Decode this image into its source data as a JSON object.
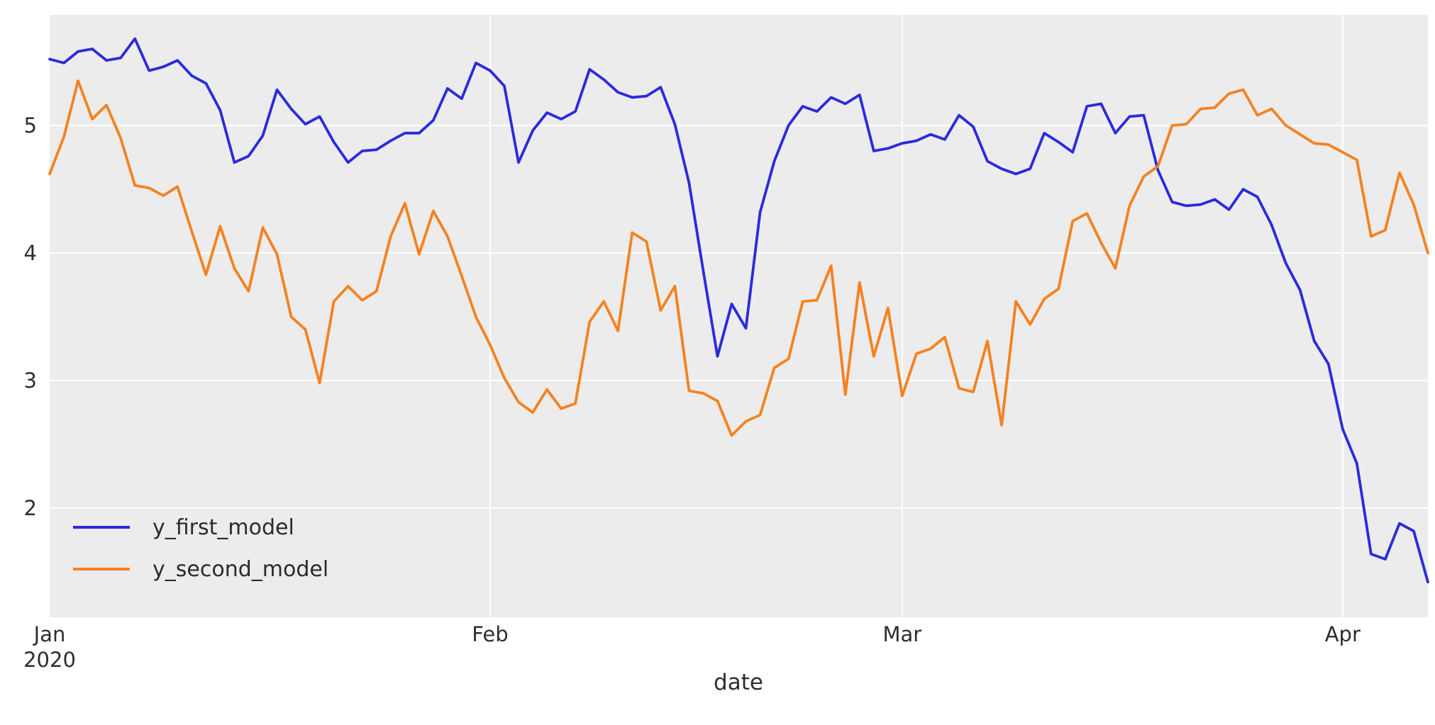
{
  "chart_data": {
    "type": "line",
    "title": "",
    "xlabel": "date",
    "ylabel": "",
    "start_date": "2020-01-01",
    "num_points": 98,
    "x_axis": {
      "tick_days": [
        0,
        31,
        60,
        91
      ],
      "tick_labels": [
        "Jan",
        "Feb",
        "Mar",
        "Apr"
      ],
      "tick_sublabels": [
        "2020",
        "",
        "",
        ""
      ]
    },
    "y_axis": {
      "ticks": [
        2,
        3,
        4,
        5
      ],
      "ylim": [
        1.144,
        5.867
      ]
    },
    "grid": true,
    "legend_position": "lower left",
    "series": [
      {
        "name": "y_first_model",
        "color": "#2b2bdc",
        "values": [
          5.52,
          5.49,
          5.58,
          5.6,
          5.51,
          5.53,
          5.68,
          5.43,
          5.46,
          5.51,
          5.39,
          5.33,
          5.12,
          4.71,
          4.76,
          4.92,
          5.28,
          5.13,
          5.01,
          5.07,
          4.87,
          4.71,
          4.8,
          4.81,
          4.88,
          4.94,
          4.94,
          5.04,
          5.29,
          5.21,
          5.49,
          5.43,
          5.31,
          4.71,
          4.96,
          5.1,
          5.05,
          5.11,
          5.44,
          5.36,
          5.26,
          5.22,
          5.23,
          5.3,
          5.01,
          4.55,
          3.86,
          3.19,
          3.6,
          3.41,
          4.32,
          4.72,
          5.0,
          5.15,
          5.11,
          5.22,
          5.17,
          5.24,
          4.8,
          4.82,
          4.86,
          4.88,
          4.93,
          4.89,
          5.08,
          4.99,
          4.72,
          4.66,
          4.62,
          4.66,
          4.94,
          4.87,
          4.79,
          5.15,
          5.17,
          4.94,
          5.07,
          5.08,
          4.65,
          4.4,
          4.37,
          4.38,
          4.42,
          4.34,
          4.5,
          4.44,
          4.22,
          3.92,
          3.71,
          3.31,
          3.13,
          2.62,
          2.35,
          1.64,
          1.6,
          1.88,
          1.82,
          1.42
        ]
      },
      {
        "name": "y_second_model",
        "color": "#f5821f",
        "values": [
          4.62,
          4.91,
          5.35,
          5.05,
          5.16,
          4.9,
          4.53,
          4.51,
          4.45,
          4.52,
          4.17,
          3.83,
          4.21,
          3.88,
          3.7,
          4.2,
          3.99,
          3.5,
          3.4,
          2.98,
          3.62,
          3.74,
          3.63,
          3.7,
          4.13,
          4.39,
          3.99,
          4.33,
          4.13,
          3.82,
          3.5,
          3.28,
          3.02,
          2.83,
          2.75,
          2.93,
          2.78,
          2.82,
          3.46,
          3.62,
          3.39,
          4.16,
          4.09,
          3.55,
          3.74,
          2.92,
          2.9,
          2.84,
          2.57,
          2.68,
          2.73,
          3.1,
          3.17,
          3.62,
          3.63,
          3.9,
          2.89,
          3.77,
          3.19,
          3.57,
          2.88,
          3.21,
          3.25,
          3.34,
          2.94,
          2.91,
          3.31,
          2.65,
          3.62,
          3.44,
          3.64,
          3.72,
          4.25,
          4.31,
          4.08,
          3.88,
          4.37,
          4.6,
          4.68,
          5.0,
          5.01,
          5.13,
          5.14,
          5.25,
          5.28,
          5.08,
          5.13,
          5.0,
          4.93,
          4.86,
          4.85,
          4.79,
          4.73,
          4.13,
          4.18,
          4.63,
          4.38,
          4.0
        ]
      }
    ]
  },
  "style": {
    "plot_bg": "#ececec",
    "grid_color": "#ffffff",
    "text_color": "#2e2e2e",
    "line_width": 3.8
  }
}
